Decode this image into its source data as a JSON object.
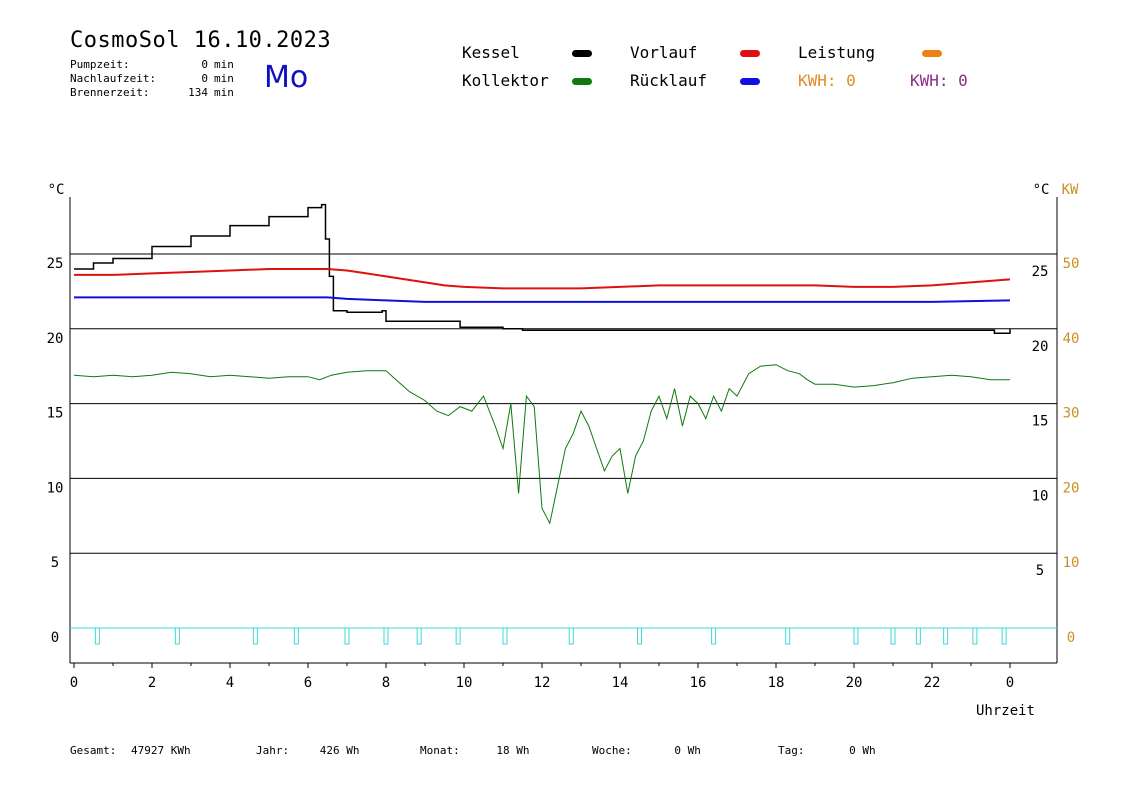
{
  "header": {
    "title": "CosmoSol 16.10.2023",
    "weekday": "Mo",
    "info": [
      {
        "label": "Pumpzeit:",
        "value": "0",
        "unit": "min"
      },
      {
        "label": "Nachlaufzeit:",
        "value": "0",
        "unit": "min"
      },
      {
        "label": "Brennerzeit:",
        "value": "134",
        "unit": "min"
      }
    ]
  },
  "legend": {
    "kessel": "Kessel",
    "kollektor": "Kollektor",
    "vorlauf": "Vorlauf",
    "ruecklauf": "Rücklauf",
    "leistung": "Leistung",
    "kwh1": "KWH: 0",
    "kwh2": "KWH: 0"
  },
  "colors": {
    "kessel": "#000000",
    "kollektor": "#107810",
    "vorlauf": "#e01010",
    "ruecklauf": "#1010e0",
    "leistung": "#f08010",
    "kwh1": "#e08c28",
    "kwh2": "#8c2c8c",
    "pump": "#40d8d8",
    "weekday": "#1010c0"
  },
  "footer": [
    {
      "label": "Gesamt:",
      "value": "47927 KWh"
    },
    {
      "label": "Jahr:",
      "value": "426 Wh"
    },
    {
      "label": "Monat:",
      "value": "18 Wh"
    },
    {
      "label": "Woche:",
      "value": "0 Wh"
    },
    {
      "label": "Tag:",
      "value": "0 Wh"
    }
  ],
  "chart_data": {
    "type": "line",
    "xlabel": "Uhrzeit",
    "ylabel_left": "°C",
    "ylabel_right": "°C",
    "ylabel_right2": "KW",
    "x_ticks": [
      "0",
      "2",
      "4",
      "6",
      "8",
      "10",
      "12",
      "14",
      "16",
      "18",
      "20",
      "22",
      "0"
    ],
    "y_left_ticks": [
      "25",
      "20",
      "15",
      "10",
      "5",
      "0"
    ],
    "y_right_ticks": [
      "25",
      "20",
      "15",
      "10",
      "5"
    ],
    "y_right2_ticks": [
      "50",
      "40",
      "30",
      "20",
      "10",
      "0"
    ],
    "xlim": [
      0,
      24
    ],
    "ylim": [
      -2.3,
      28.5
    ],
    "grid": true,
    "series": [
      {
        "name": "Kessel",
        "key": "kessel",
        "x": [
          0,
          0.5,
          1,
          2,
          3,
          4,
          5,
          6,
          6.35,
          6.45,
          6.55,
          6.65,
          7,
          7.6,
          7.9,
          8,
          9,
          9.5,
          9.9,
          10,
          11,
          11.5,
          12,
          16,
          20,
          23.5,
          23.6,
          24
        ],
        "y": [
          24,
          24.4,
          24.7,
          25.5,
          26.2,
          26.9,
          27.5,
          28.1,
          28.3,
          26,
          23.5,
          21.2,
          21.1,
          21.1,
          21.2,
          20.5,
          20.5,
          20.5,
          20.1,
          20.1,
          20.0,
          19.9,
          19.9,
          19.9,
          19.9,
          19.9,
          19.7,
          20.0
        ]
      },
      {
        "name": "Vorlauf",
        "key": "vorlauf",
        "x": [
          0,
          1,
          2,
          3,
          4,
          5,
          6,
          6.5,
          7,
          7.5,
          8,
          8.5,
          9,
          9.5,
          10,
          11,
          12,
          13,
          14,
          15,
          16,
          17,
          18,
          19,
          20,
          21,
          22,
          23,
          24
        ],
        "y": [
          23.6,
          23.6,
          23.7,
          23.8,
          23.9,
          24.0,
          24.0,
          24.0,
          23.9,
          23.7,
          23.5,
          23.3,
          23.1,
          22.9,
          22.8,
          22.7,
          22.7,
          22.7,
          22.8,
          22.9,
          22.9,
          22.9,
          22.9,
          22.9,
          22.8,
          22.8,
          22.9,
          23.1,
          23.3
        ]
      },
      {
        "name": "Rücklauf",
        "key": "ruecklauf",
        "x": [
          0,
          2,
          4,
          6,
          6.5,
          7,
          8,
          9,
          10,
          11,
          12,
          14,
          16,
          18,
          20,
          22,
          24
        ],
        "y": [
          22.1,
          22.1,
          22.1,
          22.1,
          22.1,
          22.0,
          21.9,
          21.8,
          21.8,
          21.8,
          21.8,
          21.8,
          21.8,
          21.8,
          21.8,
          21.8,
          21.9
        ]
      },
      {
        "name": "Kollektor",
        "key": "kollektor",
        "x": [
          0,
          0.5,
          1,
          1.5,
          2,
          2.5,
          3,
          3.5,
          4,
          4.5,
          5,
          5.5,
          6,
          6.3,
          6.6,
          7,
          7.5,
          8,
          8.3,
          8.6,
          9,
          9.3,
          9.6,
          9.9,
          10.2,
          10.5,
          10.8,
          11,
          11.2,
          11.4,
          11.6,
          11.8,
          12,
          12.2,
          12.4,
          12.6,
          12.8,
          13,
          13.2,
          13.4,
          13.6,
          13.8,
          14,
          14.2,
          14.4,
          14.6,
          14.8,
          15,
          15.2,
          15.4,
          15.6,
          15.8,
          16,
          16.2,
          16.4,
          16.6,
          16.8,
          17,
          17.3,
          17.6,
          18,
          18.3,
          18.6,
          18.8,
          19,
          19.5,
          20,
          20.5,
          21,
          21.5,
          22,
          22.5,
          23,
          23.5,
          24
        ],
        "y": [
          16.9,
          16.8,
          16.9,
          16.8,
          16.9,
          17.1,
          17.0,
          16.8,
          16.9,
          16.8,
          16.7,
          16.8,
          16.8,
          16.6,
          16.9,
          17.1,
          17.2,
          17.2,
          16.5,
          15.8,
          15.2,
          14.5,
          14.2,
          14.8,
          14.5,
          15.5,
          13.5,
          12.0,
          15.0,
          9.0,
          15.5,
          14.8,
          8.0,
          7.0,
          9.5,
          12.0,
          13.0,
          14.5,
          13.5,
          12.0,
          10.5,
          11.5,
          12.0,
          9.0,
          11.5,
          12.5,
          14.5,
          15.5,
          14.0,
          16.0,
          13.5,
          15.5,
          15.0,
          14.0,
          15.5,
          14.5,
          16.0,
          15.5,
          17.0,
          17.5,
          17.6,
          17.2,
          17.0,
          16.6,
          16.3,
          16.3,
          16.1,
          16.2,
          16.4,
          16.7,
          16.8,
          16.9,
          16.8,
          16.6,
          16.6
        ]
      }
    ],
    "pump_pulses_x": [
      0.6,
      2.65,
      4.65,
      5.7,
      7.0,
      8.0,
      8.85,
      9.85,
      11.05,
      12.75,
      14.5,
      16.4,
      18.3,
      20.05,
      21.0,
      21.65,
      22.35,
      23.1,
      23.85
    ]
  }
}
